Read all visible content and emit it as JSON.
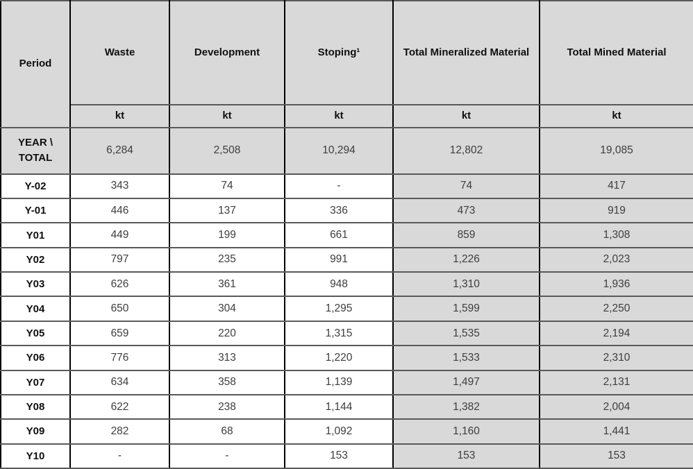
{
  "table": {
    "columns": [
      {
        "label": "Period",
        "unit": null
      },
      {
        "label": "Waste",
        "unit": "kt"
      },
      {
        "label": "Development",
        "unit": "kt"
      },
      {
        "label": "Stoping¹",
        "unit": "kt"
      },
      {
        "label": "Total Mineralized Material",
        "unit": "kt"
      },
      {
        "label": "Total Mined Material",
        "unit": "kt"
      }
    ],
    "total_row": {
      "label": "YEAR \\ TOTAL",
      "values": [
        "6,284",
        "2,508",
        "10,294",
        "12,802",
        "19,085"
      ]
    },
    "rows": [
      {
        "period": "Y-02",
        "values": [
          "343",
          "74",
          "-",
          "74",
          "417"
        ]
      },
      {
        "period": "Y-01",
        "values": [
          "446",
          "137",
          "336",
          "473",
          "919"
        ]
      },
      {
        "period": "Y01",
        "values": [
          "449",
          "199",
          "661",
          "859",
          "1,308"
        ]
      },
      {
        "period": "Y02",
        "values": [
          "797",
          "235",
          "991",
          "1,226",
          "2,023"
        ]
      },
      {
        "period": "Y03",
        "values": [
          "626",
          "361",
          "948",
          "1,310",
          "1,936"
        ]
      },
      {
        "period": "Y04",
        "values": [
          "650",
          "304",
          "1,295",
          "1,599",
          "2,250"
        ]
      },
      {
        "period": "Y05",
        "values": [
          "659",
          "220",
          "1,315",
          "1,535",
          "2,194"
        ]
      },
      {
        "period": "Y06",
        "values": [
          "776",
          "313",
          "1,220",
          "1,533",
          "2,310"
        ]
      },
      {
        "period": "Y07",
        "values": [
          "634",
          "358",
          "1,139",
          "1,497",
          "2,131"
        ]
      },
      {
        "period": "Y08",
        "values": [
          "622",
          "238",
          "1,144",
          "1,382",
          "2,004"
        ]
      },
      {
        "period": "Y09",
        "values": [
          "282",
          "68",
          "1,092",
          "1,160",
          "1,441"
        ]
      },
      {
        "period": "Y10",
        "values": [
          "-",
          "-",
          "153",
          "153",
          "153"
        ]
      }
    ]
  },
  "colors": {
    "cell_fill_gray": "#d9d9d9",
    "horizontal_border": "#595959",
    "vertical_border": "#000000",
    "header_text": "#0f0f0f",
    "data_text": "#3d3d3d"
  }
}
